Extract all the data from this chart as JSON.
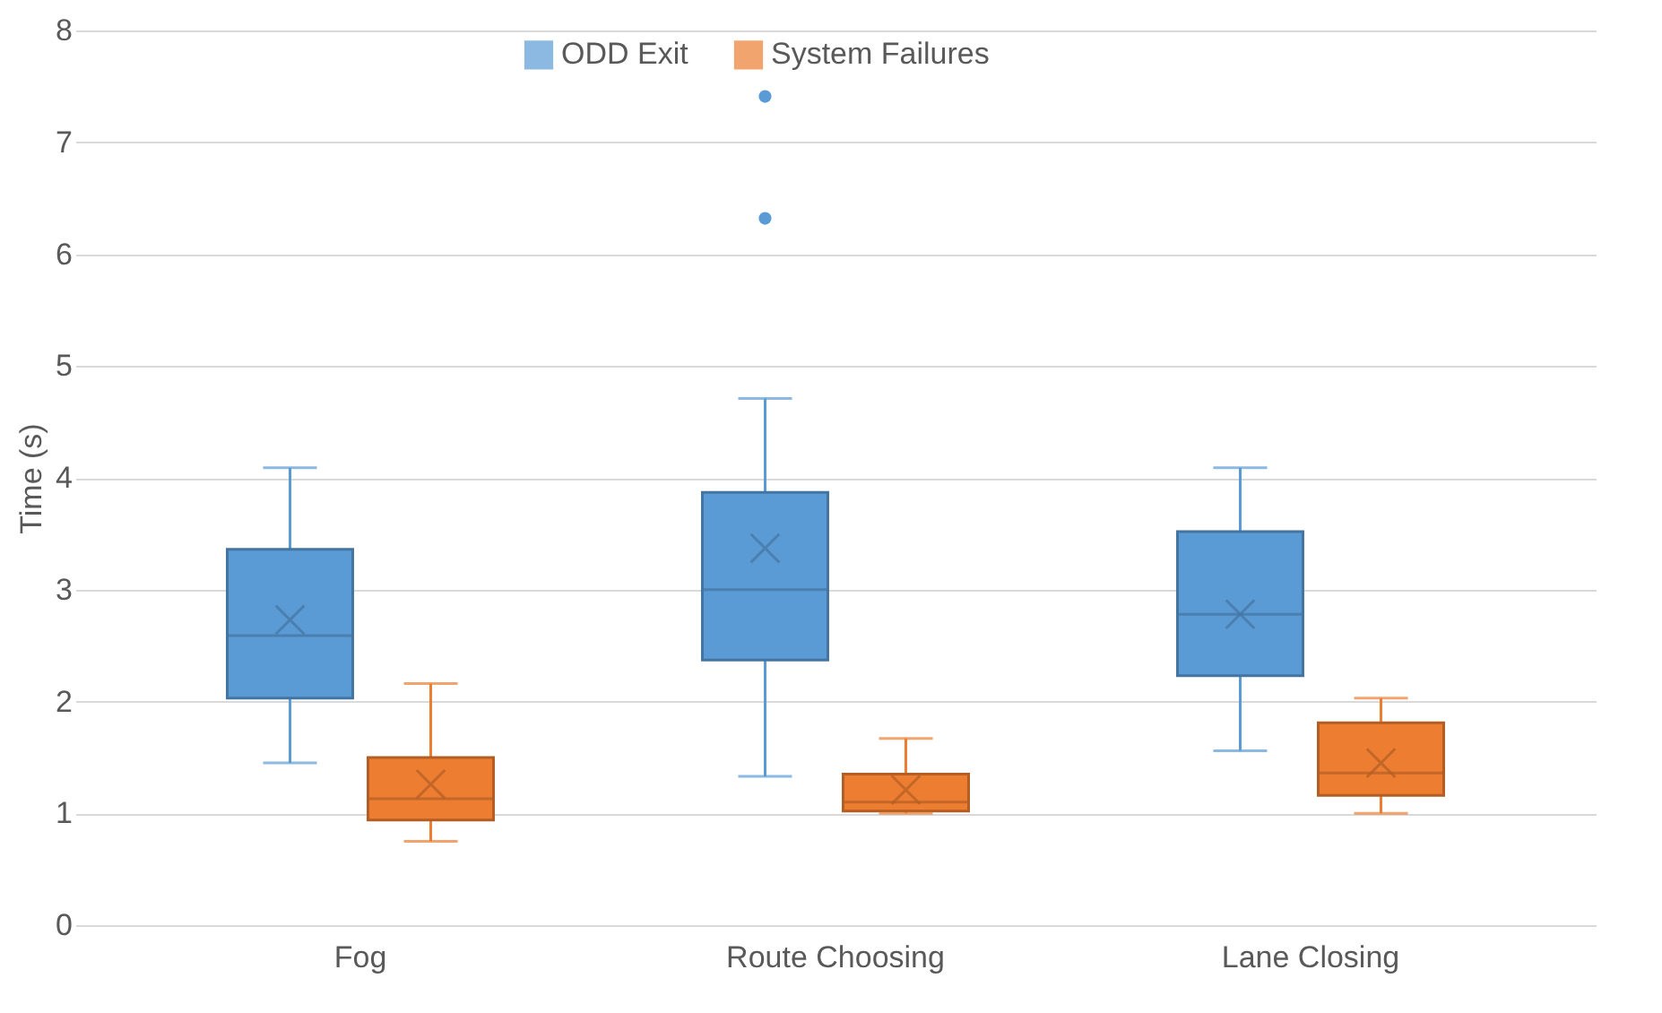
{
  "chart_data": {
    "type": "box",
    "ylabel": "Time (s)",
    "categories": [
      "Fog",
      "Route Choosing",
      "Lane Closing"
    ],
    "ylim": [
      0,
      8
    ],
    "yticks": [
      0,
      1,
      2,
      3,
      4,
      5,
      6,
      7,
      8
    ],
    "grid": "y",
    "legend": "top",
    "series": [
      {
        "name": "ODD Exit",
        "color": "#5b9bd5",
        "boxes": [
          {
            "low": 1.45,
            "q1": 2.03,
            "median": 2.59,
            "q3": 3.36,
            "high": 4.09,
            "mean": 2.73
          },
          {
            "low": 1.33,
            "q1": 2.37,
            "median": 3.0,
            "q3": 3.87,
            "high": 4.71,
            "mean": 3.37,
            "outliers": [
              6.32,
              7.41
            ]
          },
          {
            "low": 1.56,
            "q1": 2.23,
            "median": 2.78,
            "q3": 3.52,
            "high": 4.09,
            "mean": 2.78
          }
        ]
      },
      {
        "name": "System Failures",
        "color": "#ed7d31",
        "boxes": [
          {
            "low": 0.75,
            "q1": 0.94,
            "median": 1.13,
            "q3": 1.5,
            "high": 2.16,
            "mean": 1.26
          },
          {
            "low": 1.0,
            "q1": 1.02,
            "median": 1.1,
            "q3": 1.35,
            "high": 1.67,
            "mean": 1.21
          },
          {
            "low": 1.0,
            "q1": 1.16,
            "median": 1.36,
            "q3": 1.81,
            "high": 2.03,
            "mean": 1.45
          }
        ]
      }
    ]
  }
}
